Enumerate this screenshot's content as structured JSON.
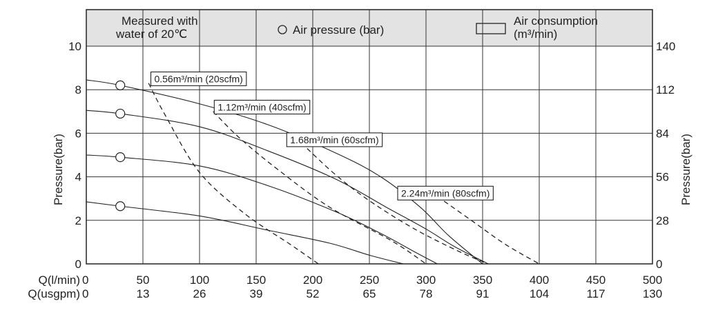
{
  "chart_data": {
    "type": "line",
    "header": {
      "note_line1": "Measured with",
      "note_line2": "water of 20℃",
      "legend_pressure": "Air pressure (bar)",
      "legend_consumption_line1": "Air consumption",
      "legend_consumption_line2": "(m³/min)",
      "background_color": "#e3e3e3"
    },
    "y_left": {
      "label": "Pressure(bar)",
      "ticks": [
        0,
        2,
        4,
        6,
        8,
        10
      ],
      "lim": [
        0,
        10
      ]
    },
    "y_right": {
      "label": "Pressure(bar)",
      "ticks": [
        0,
        28,
        56,
        84,
        112,
        140
      ],
      "lim": [
        0,
        140
      ]
    },
    "x_primary": {
      "label": "Q(l/min)",
      "ticks": [
        0,
        50,
        100,
        150,
        200,
        250,
        300,
        350,
        400,
        450,
        500
      ],
      "lim": [
        0,
        500
      ]
    },
    "x_secondary": {
      "label": "Q(usgpm)",
      "ticks": [
        0,
        13,
        26,
        39,
        52,
        65,
        78,
        91,
        104,
        117,
        130
      ]
    },
    "grid": true,
    "pressure_series": [
      {
        "x": [
          -5,
          30,
          100,
          160,
          220,
          260,
          295,
          320,
          350
        ],
        "y": [
          8.45,
          8.2,
          7.35,
          6.4,
          5.1,
          4.0,
          2.6,
          1.3,
          0
        ],
        "start_marker": [
          30,
          8.2
        ]
      },
      {
        "x": [
          -5,
          30,
          100,
          160,
          220,
          265,
          300,
          325,
          355
        ],
        "y": [
          7.05,
          6.9,
          6.3,
          5.2,
          3.9,
          2.6,
          1.6,
          0.8,
          0
        ]
      },
      {
        "x": [
          -5,
          30,
          100,
          160,
          220,
          260,
          290,
          310
        ],
        "y": [
          5.0,
          4.9,
          4.5,
          3.6,
          2.4,
          1.4,
          0.55,
          0
        ],
        "start_marker": [
          30,
          4.9
        ]
      },
      {
        "x": [
          -5,
          30,
          100,
          160,
          215,
          250,
          280
        ],
        "y": [
          2.85,
          2.65,
          2.2,
          1.55,
          0.95,
          0.4,
          0
        ]
      }
    ],
    "flow_series": [
      {
        "name": "0.56m³/min (20scfm)",
        "x": [
          55,
          70,
          100,
          140,
          180,
          205
        ],
        "y": [
          8.3,
          6.8,
          4.2,
          2.3,
          0.9,
          0
        ]
      },
      {
        "name": "1.12m³/min (40scfm)",
        "x": [
          112,
          135,
          170,
          215,
          270,
          300
        ],
        "y": [
          7.0,
          5.8,
          4.3,
          2.6,
          1.05,
          0
        ]
      },
      {
        "name": "1.68m³/min (60scfm)",
        "x": [
          195,
          220,
          250,
          290,
          330,
          355
        ],
        "y": [
          5.3,
          4.1,
          2.9,
          1.6,
          0.55,
          0
        ]
      },
      {
        "name": "2.24m³/min (80scfm)",
        "x": [
          310,
          340,
          370,
          400
        ],
        "y": [
          3.1,
          2.0,
          0.9,
          0
        ]
      }
    ],
    "annotations": [
      {
        "text": "0.56m³/min (20scfm)",
        "x": 57,
        "y": 8.5
      },
      {
        "text": "1.12m³/min (40scfm)",
        "x": 113,
        "y": 7.2
      },
      {
        "text": "1.68m³/min (60scfm)",
        "x": 177,
        "y": 5.7
      },
      {
        "text": "2.24m³/min (80scfm)",
        "x": 275,
        "y": 3.25
      }
    ]
  }
}
